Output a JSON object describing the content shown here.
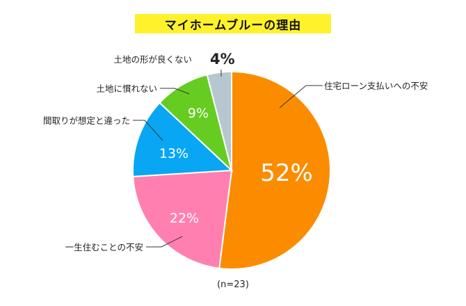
{
  "chart_data": {
    "type": "pie",
    "title": "マイホームブルーの理由",
    "note": "(n=23)",
    "slices": [
      {
        "label": "住宅ローン支払いへの不安",
        "value": 52,
        "display": "52%",
        "color": "#fb8c00"
      },
      {
        "label": "一生住むことの不安",
        "value": 22,
        "display": "22%",
        "color": "#ff80b0"
      },
      {
        "label": "間取りが想定と違った",
        "value": 13,
        "display": "13%",
        "color": "#08a6f3"
      },
      {
        "label": "土地に慣れない",
        "value": 9,
        "display": "9%",
        "color": "#66cc22"
      },
      {
        "label": "土地の形が良くない",
        "value": 4,
        "display": "4%",
        "color": "#b7c7cf"
      }
    ],
    "highlight_color": "#fff12b",
    "start": "12 o'clock",
    "direction": "clockwise"
  }
}
